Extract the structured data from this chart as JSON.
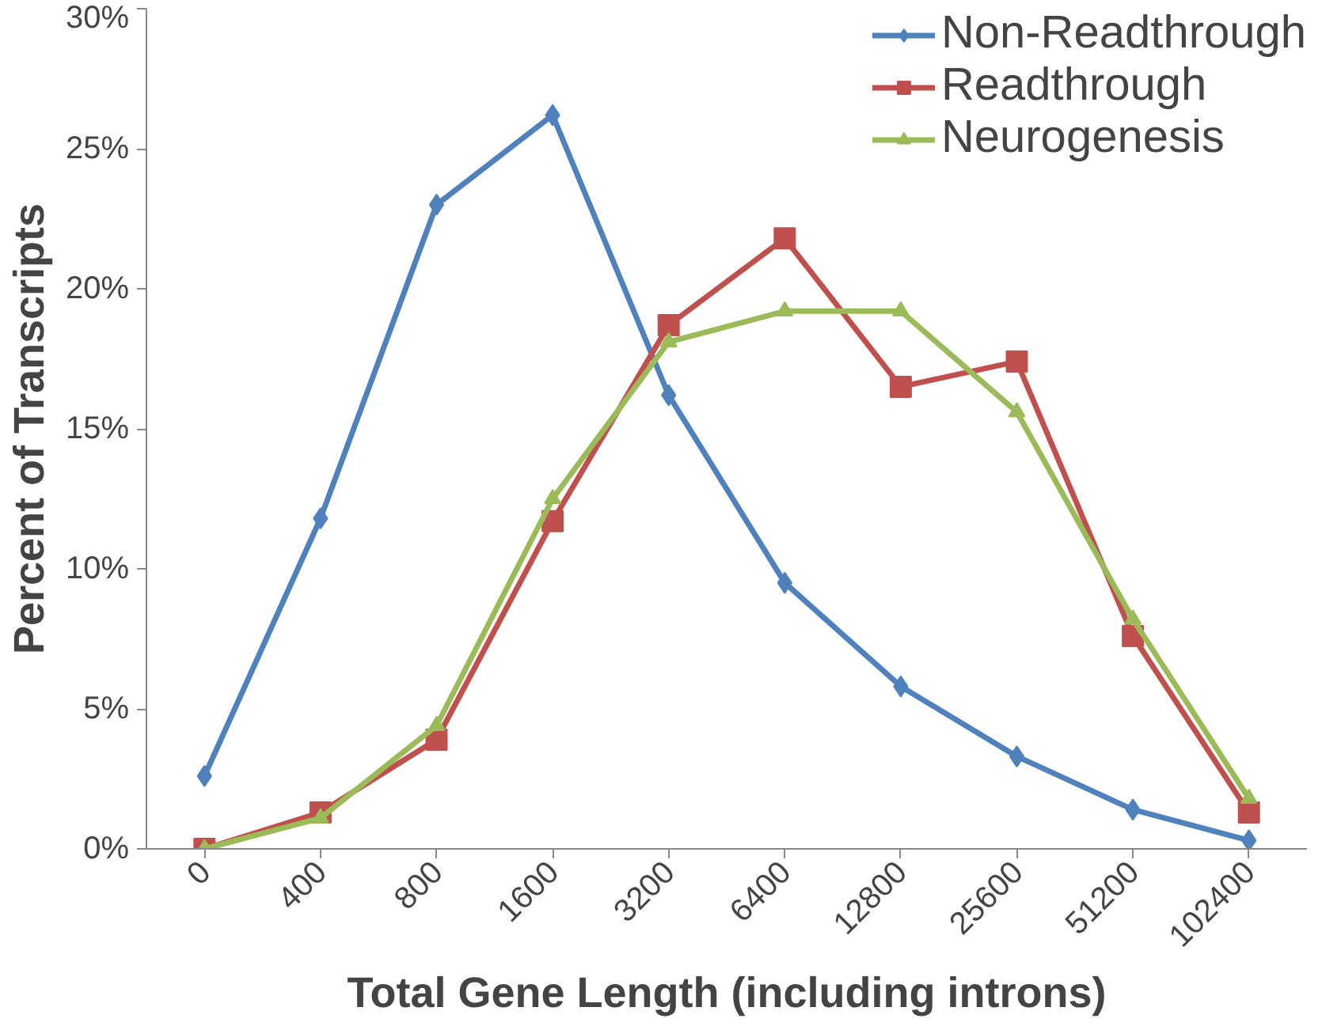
{
  "chart_data": {
    "type": "line",
    "xlabel": "Total Gene Length (including introns)",
    "ylabel": "Percent of Transcripts",
    "categories": [
      "0",
      "400",
      "800",
      "1600",
      "3200",
      "6400",
      "12800",
      "25600",
      "51200",
      "102400"
    ],
    "series": [
      {
        "name": "Non-Readthrough",
        "color": "#4f81bd",
        "marker": "diamond",
        "values": [
          2.6,
          11.8,
          23.0,
          26.2,
          16.2,
          9.5,
          5.8,
          3.3,
          1.4,
          0.3
        ]
      },
      {
        "name": "Readthrough",
        "color": "#c0504d",
        "marker": "square",
        "values": [
          0,
          1.3,
          3.9,
          11.7,
          18.7,
          21.8,
          16.5,
          17.4,
          7.6,
          1.3
        ]
      },
      {
        "name": "Neurogenesis",
        "color": "#9bbb59",
        "marker": "triangle",
        "values": [
          0,
          1.1,
          4.4,
          12.5,
          18.1,
          19.2,
          19.2,
          15.6,
          8.2,
          1.8
        ]
      }
    ],
    "ylim": [
      0,
      30
    ],
    "yticks": [
      {
        "value": 0,
        "label": "0%"
      },
      {
        "value": 5,
        "label": "5%"
      },
      {
        "value": 10,
        "label": "10%"
      },
      {
        "value": 15,
        "label": "15%"
      },
      {
        "value": 20,
        "label": "20%"
      },
      {
        "value": 25,
        "label": "25%"
      },
      {
        "value": 30,
        "label": "30%"
      }
    ],
    "grid": false,
    "legend": "top right",
    "line_style": "solid"
  }
}
